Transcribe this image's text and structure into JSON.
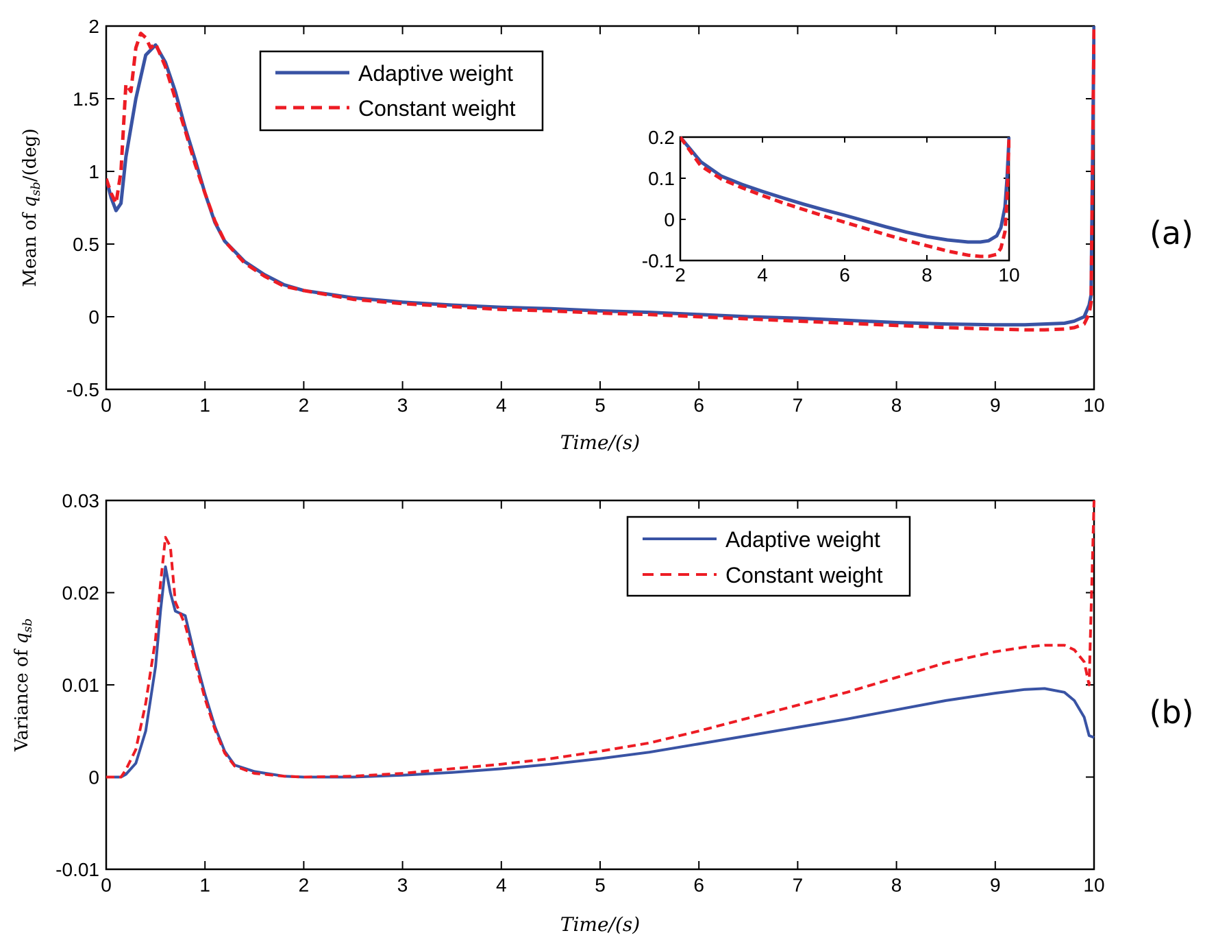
{
  "colors": {
    "adaptive": "#3953a4",
    "constant": "#ed1c24",
    "axis": "#000000"
  },
  "chart_data": [
    {
      "id": "a",
      "type": "line",
      "panel_label": "(a)",
      "xlabel": "Time/(s)",
      "ylabel": "Mean of q_sb/(deg)",
      "ylabel_prefix": "Mean of ",
      "ylabel_var": "q",
      "ylabel_sub": "sb",
      "ylabel_suffix": "/(deg)",
      "xlim": [
        0,
        10
      ],
      "ylim": [
        -0.5,
        2
      ],
      "xticks": [
        "0",
        "1",
        "2",
        "3",
        "4",
        "5",
        "6",
        "7",
        "8",
        "9",
        "10"
      ],
      "yticks": [
        "-0.5",
        "0",
        "0.5",
        "1",
        "1.5",
        "2"
      ],
      "legend": [
        "Adaptive weight",
        "Constant weight"
      ],
      "series": [
        {
          "name": "Adaptive weight",
          "style": "solid",
          "x": [
            0,
            0.05,
            0.1,
            0.15,
            0.2,
            0.3,
            0.4,
            0.5,
            0.6,
            0.7,
            0.8,
            0.9,
            1.0,
            1.1,
            1.2,
            1.4,
            1.6,
            1.8,
            2.0,
            2.5,
            3.0,
            3.5,
            4.0,
            4.5,
            5.0,
            5.5,
            6.0,
            6.5,
            7.0,
            7.5,
            8.0,
            8.5,
            9.0,
            9.3,
            9.5,
            9.7,
            9.8,
            9.9,
            9.95,
            9.97,
            10.0
          ],
          "values": [
            0.95,
            0.82,
            0.73,
            0.78,
            1.1,
            1.5,
            1.8,
            1.87,
            1.75,
            1.55,
            1.3,
            1.08,
            0.85,
            0.65,
            0.52,
            0.38,
            0.29,
            0.22,
            0.18,
            0.13,
            0.1,
            0.08,
            0.065,
            0.055,
            0.04,
            0.03,
            0.015,
            0.0,
            -0.01,
            -0.025,
            -0.04,
            -0.05,
            -0.055,
            -0.055,
            -0.05,
            -0.045,
            -0.03,
            0.0,
            0.08,
            0.15,
            2.0
          ]
        },
        {
          "name": "Constant weight",
          "style": "dashed",
          "x": [
            0,
            0.05,
            0.1,
            0.15,
            0.2,
            0.25,
            0.3,
            0.35,
            0.4,
            0.45,
            0.5,
            0.6,
            0.7,
            0.8,
            0.9,
            1.0,
            1.1,
            1.2,
            1.4,
            1.6,
            1.8,
            2.0,
            2.5,
            3.0,
            3.5,
            4.0,
            4.5,
            5.0,
            5.5,
            6.0,
            6.5,
            7.0,
            7.5,
            8.0,
            8.5,
            9.0,
            9.3,
            9.5,
            9.7,
            9.8,
            9.9,
            9.95,
            9.97,
            10.0
          ],
          "values": [
            0.95,
            0.85,
            0.78,
            1.0,
            1.6,
            1.55,
            1.85,
            1.95,
            1.92,
            1.85,
            1.88,
            1.72,
            1.5,
            1.28,
            1.05,
            0.85,
            0.66,
            0.52,
            0.37,
            0.28,
            0.21,
            0.18,
            0.12,
            0.09,
            0.07,
            0.05,
            0.04,
            0.025,
            0.015,
            0.0,
            -0.015,
            -0.03,
            -0.045,
            -0.06,
            -0.075,
            -0.085,
            -0.09,
            -0.09,
            -0.085,
            -0.075,
            -0.05,
            0.02,
            0.1,
            2.0
          ]
        }
      ],
      "inset": {
        "type": "line",
        "xlim": [
          2,
          10
        ],
        "ylim": [
          -0.1,
          0.2
        ],
        "xticks": [
          "2",
          "4",
          "6",
          "8",
          "10"
        ],
        "yticks": [
          "-0.1",
          "0",
          "0.1",
          "0.2"
        ],
        "series": [
          {
            "name": "Adaptive weight",
            "style": "solid",
            "x": [
              2.0,
              2.5,
              3.0,
              3.5,
              4.0,
              4.5,
              5.0,
              5.5,
              6.0,
              6.5,
              7.0,
              7.5,
              8.0,
              8.5,
              9.0,
              9.3,
              9.5,
              9.7,
              9.8,
              9.9,
              9.95,
              10.0
            ],
            "values": [
              0.2,
              0.14,
              0.105,
              0.085,
              0.068,
              0.052,
              0.037,
              0.023,
              0.01,
              -0.004,
              -0.018,
              -0.031,
              -0.042,
              -0.05,
              -0.055,
              -0.055,
              -0.052,
              -0.04,
              -0.02,
              0.03,
              0.1,
              0.2
            ]
          },
          {
            "name": "Constant weight",
            "style": "dashed",
            "x": [
              2.0,
              2.5,
              3.0,
              3.5,
              4.0,
              4.5,
              5.0,
              5.5,
              6.0,
              6.5,
              7.0,
              7.5,
              8.0,
              8.5,
              9.0,
              9.3,
              9.5,
              9.7,
              9.8,
              9.9,
              9.95,
              10.0
            ],
            "values": [
              0.2,
              0.13,
              0.098,
              0.077,
              0.058,
              0.04,
              0.024,
              0.008,
              -0.007,
              -0.022,
              -0.037,
              -0.051,
              -0.064,
              -0.077,
              -0.087,
              -0.09,
              -0.09,
              -0.085,
              -0.07,
              -0.03,
              0.05,
              0.2
            ]
          }
        ]
      }
    },
    {
      "id": "b",
      "type": "line",
      "panel_label": "(b)",
      "xlabel": "Time/(s)",
      "ylabel": "Variance of q_sb",
      "ylabel_prefix": "Variance of ",
      "ylabel_var": "q",
      "ylabel_sub": "sb",
      "ylabel_suffix": "",
      "xlim": [
        0,
        10
      ],
      "ylim": [
        -0.01,
        0.03
      ],
      "xticks": [
        "0",
        "1",
        "2",
        "3",
        "4",
        "5",
        "6",
        "7",
        "8",
        "9",
        "10"
      ],
      "yticks": [
        "-0.01",
        "0",
        "0.01",
        "0.02",
        "0.03"
      ],
      "legend": [
        "Adaptive weight",
        "Constant weight"
      ],
      "series": [
        {
          "name": "Adaptive weight",
          "style": "solid",
          "x": [
            0,
            0.15,
            0.2,
            0.3,
            0.4,
            0.5,
            0.55,
            0.6,
            0.65,
            0.7,
            0.8,
            0.9,
            1.0,
            1.1,
            1.2,
            1.3,
            1.5,
            1.8,
            2.0,
            2.5,
            3.0,
            3.5,
            4.0,
            4.5,
            5.0,
            5.5,
            6.0,
            6.5,
            7.0,
            7.5,
            8.0,
            8.5,
            9.0,
            9.3,
            9.5,
            9.7,
            9.8,
            9.9,
            9.95,
            10.0
          ],
          "values": [
            0.0,
            0.0,
            0.0003,
            0.0015,
            0.005,
            0.012,
            0.018,
            0.0228,
            0.02,
            0.018,
            0.0175,
            0.013,
            0.009,
            0.0055,
            0.0028,
            0.0013,
            0.0006,
            0.0001,
            0.0,
            0.0,
            0.0002,
            0.0005,
            0.0009,
            0.0014,
            0.002,
            0.0027,
            0.0036,
            0.0045,
            0.0054,
            0.0063,
            0.0073,
            0.0083,
            0.0091,
            0.0095,
            0.0096,
            0.0092,
            0.0083,
            0.0065,
            0.0045,
            0.0043
          ]
        },
        {
          "name": "Constant weight",
          "style": "dashed",
          "x": [
            0,
            0.15,
            0.2,
            0.3,
            0.4,
            0.5,
            0.55,
            0.6,
            0.65,
            0.7,
            0.8,
            0.9,
            1.0,
            1.1,
            1.2,
            1.3,
            1.5,
            1.8,
            2.0,
            2.5,
            3.0,
            3.5,
            4.0,
            4.5,
            5.0,
            5.5,
            6.0,
            6.5,
            7.0,
            7.5,
            8.0,
            8.5,
            9.0,
            9.3,
            9.5,
            9.7,
            9.8,
            9.9,
            9.95,
            10.0
          ],
          "values": [
            0.0,
            0.0,
            0.0008,
            0.003,
            0.008,
            0.015,
            0.021,
            0.026,
            0.025,
            0.019,
            0.0165,
            0.0125,
            0.0085,
            0.0052,
            0.0026,
            0.0012,
            0.0004,
            0.0001,
            0.0,
            0.0001,
            0.0004,
            0.0009,
            0.0014,
            0.002,
            0.0028,
            0.0037,
            0.005,
            0.0064,
            0.0078,
            0.0092,
            0.0108,
            0.0124,
            0.0136,
            0.0141,
            0.0143,
            0.0143,
            0.0138,
            0.0125,
            0.01,
            0.03
          ]
        }
      ]
    }
  ]
}
